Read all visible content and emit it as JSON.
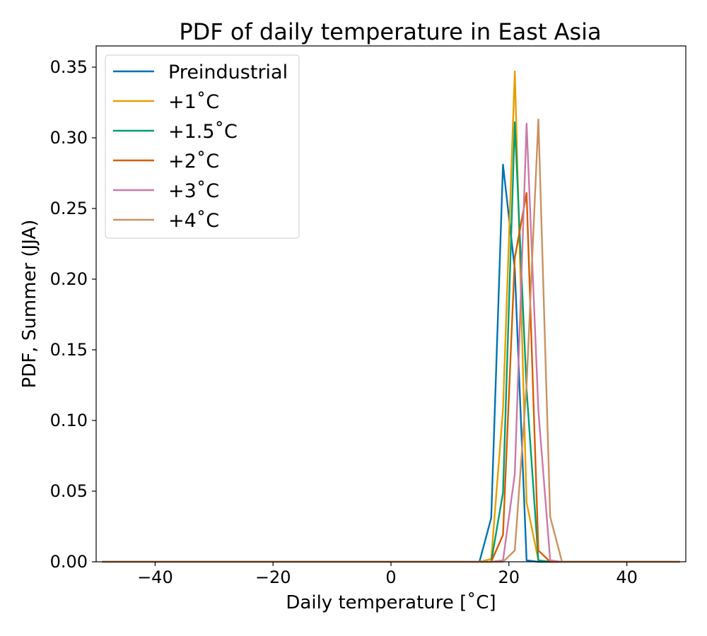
{
  "chart_data": {
    "type": "line",
    "title": "PDF of daily temperature in East Asia",
    "xlabel": "Daily temperature [˚C]",
    "ylabel": "PDF, Summer (JJA)",
    "xlim": [
      -50,
      50
    ],
    "ylim": [
      0,
      0.365
    ],
    "xticks": [
      -40,
      -20,
      0,
      20,
      40
    ],
    "xtick_labels": [
      "−40",
      "−20",
      "0",
      "20",
      "40"
    ],
    "yticks": [
      0.0,
      0.05,
      0.1,
      0.15,
      0.2,
      0.25,
      0.3,
      0.35
    ],
    "ytick_labels": [
      "0.00",
      "0.05",
      "0.10",
      "0.15",
      "0.20",
      "0.25",
      "0.30",
      "0.35"
    ],
    "grid": false,
    "legend_position": "top-left",
    "series": [
      {
        "name": "Preindustrial",
        "color": "#0072b2",
        "points": [
          [
            -49,
            0
          ],
          [
            15,
            0
          ],
          [
            17,
            0.031
          ],
          [
            19,
            0.281
          ],
          [
            21,
            0.207
          ],
          [
            23,
            0.001
          ],
          [
            25,
            0
          ],
          [
            49,
            0
          ]
        ]
      },
      {
        "name": "+1˚C",
        "color": "#e69f00",
        "points": [
          [
            -49,
            0
          ],
          [
            15,
            0
          ],
          [
            17,
            0.002
          ],
          [
            19,
            0.108
          ],
          [
            21,
            0.347
          ],
          [
            23,
            0.042
          ],
          [
            25,
            0.001
          ],
          [
            27,
            0
          ],
          [
            49,
            0
          ]
        ]
      },
      {
        "name": "+1.5˚C",
        "color": "#009e73",
        "points": [
          [
            -49,
            0
          ],
          [
            15,
            0
          ],
          [
            17,
            0
          ],
          [
            19,
            0.049
          ],
          [
            21,
            0.311
          ],
          [
            23,
            0.122
          ],
          [
            25,
            0.001
          ],
          [
            27,
            0
          ],
          [
            49,
            0
          ]
        ]
      },
      {
        "name": "+2˚C",
        "color": "#d55e00",
        "points": [
          [
            -49,
            0
          ],
          [
            17,
            0
          ],
          [
            19,
            0.019
          ],
          [
            21,
            0.215
          ],
          [
            23,
            0.261
          ],
          [
            25,
            0.008
          ],
          [
            27,
            0
          ],
          [
            49,
            0
          ]
        ]
      },
      {
        "name": "+3˚C",
        "color": "#cc79a7",
        "points": [
          [
            -49,
            0
          ],
          [
            17,
            0
          ],
          [
            19,
            0.001
          ],
          [
            21,
            0.062
          ],
          [
            23,
            0.31
          ],
          [
            25,
            0.107
          ],
          [
            27,
            0.001
          ],
          [
            29,
            0
          ],
          [
            49,
            0
          ]
        ]
      },
      {
        "name": "+4˚C",
        "color": "#ca9161",
        "points": [
          [
            -49,
            0
          ],
          [
            19,
            0
          ],
          [
            21,
            0.008
          ],
          [
            23,
            0.125
          ],
          [
            25,
            0.313
          ],
          [
            27,
            0.032
          ],
          [
            29,
            0
          ],
          [
            49,
            0
          ]
        ]
      }
    ]
  }
}
